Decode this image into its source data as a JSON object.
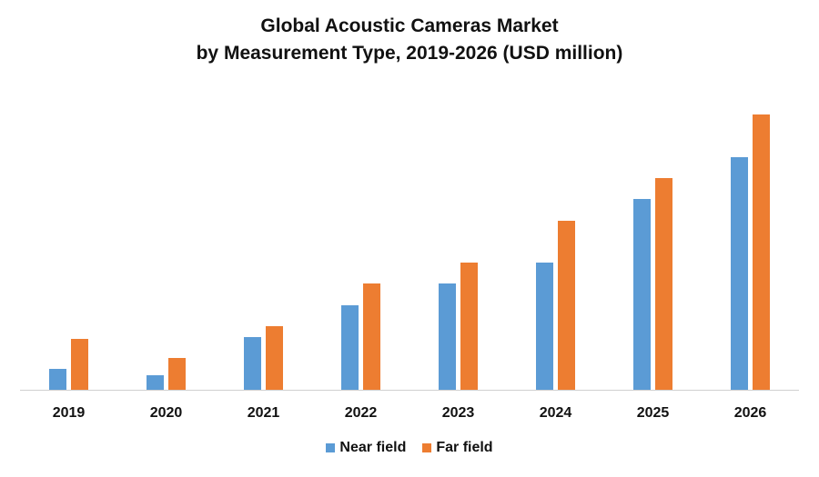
{
  "chart_data": {
    "type": "bar",
    "title_lines": [
      "Global Acoustic Cameras Market",
      "by Measurement Type, 2019-2026 (USD million)"
    ],
    "xlabel": "",
    "ylabel": "",
    "y_axis_shown": false,
    "grid": false,
    "legend_position": "bottom",
    "categories": [
      "2019",
      "2020",
      "2021",
      "2022",
      "2023",
      "2024",
      "2025",
      "2026"
    ],
    "series": [
      {
        "name": "Near field",
        "color": "#5b9bd5",
        "values": [
          23,
          16,
          58,
          93,
          117,
          140,
          210,
          256
        ]
      },
      {
        "name": "Far field",
        "color": "#ed7d31",
        "values": [
          56,
          35,
          70,
          117,
          140,
          186,
          233,
          303
        ]
      }
    ],
    "ylim": [
      0,
      303
    ],
    "units_note": "relative (no y-axis shown)"
  }
}
